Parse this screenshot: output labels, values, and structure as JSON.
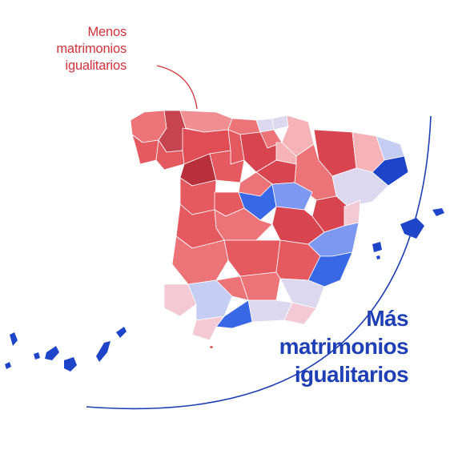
{
  "labels": {
    "less": [
      "Menos",
      "matrimonios",
      "igualitarios"
    ],
    "more": [
      "Más",
      "matrimonios",
      "igualitarios"
    ]
  },
  "colors": {
    "less_text": "#d2323a",
    "more_text": "#1e3fb5",
    "arc": "#1e3fb5",
    "pointer_line": "#d2323a",
    "scale": [
      "#b8303c",
      "#d84550",
      "#e45a60",
      "#ec7378",
      "#f08f92",
      "#f5b3b8",
      "#f2c9d4",
      "#dcd8f0",
      "#c6cdf3",
      "#7d98f0",
      "#3868e6",
      "#1e45c9"
    ]
  },
  "map": {
    "region": "Spain",
    "legend_direction": "red = fewer same-sex marriages, blue = more"
  }
}
